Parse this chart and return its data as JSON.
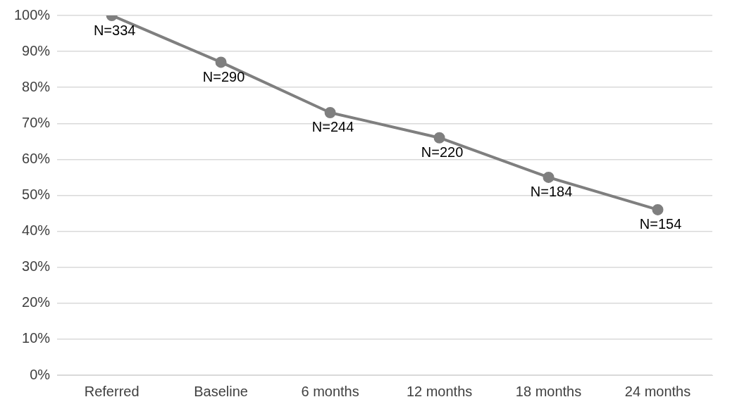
{
  "chart_data": {
    "type": "line",
    "categories": [
      "Referred",
      "Baseline",
      "6 months",
      "12 months",
      "18 months",
      "24 months"
    ],
    "series": [
      {
        "color": "#7f7f7f",
        "values": [
          100,
          87,
          73,
          66,
          55,
          46
        ]
      }
    ],
    "annotations": [
      {
        "text": "N=334",
        "x": "Referred",
        "y": 100
      },
      {
        "text": "N=290",
        "x": "Baseline",
        "y": 87
      },
      {
        "text": "N=244",
        "x": "6 months",
        "y": 73
      },
      {
        "text": "N=220",
        "x": "12 months",
        "y": 66
      },
      {
        "text": "N=184",
        "x": "18 months",
        "y": 55
      },
      {
        "text": "N=154",
        "x": "24 months",
        "y": 46
      }
    ],
    "ylim": [
      0,
      100
    ],
    "yticks": [
      {
        "value": 0,
        "label": "0%"
      },
      {
        "value": 10,
        "label": "10%"
      },
      {
        "value": 20,
        "label": "20%"
      },
      {
        "value": 30,
        "label": "30%"
      },
      {
        "value": 40,
        "label": "40%"
      },
      {
        "value": 50,
        "label": "50%"
      },
      {
        "value": 60,
        "label": "60%"
      },
      {
        "value": 70,
        "label": "70%"
      },
      {
        "value": 80,
        "label": "80%"
      },
      {
        "value": 90,
        "label": "90%"
      },
      {
        "value": 100,
        "label": "100%"
      }
    ],
    "grid": "y",
    "legend": false,
    "marker": "circle",
    "line_style": "solid"
  }
}
